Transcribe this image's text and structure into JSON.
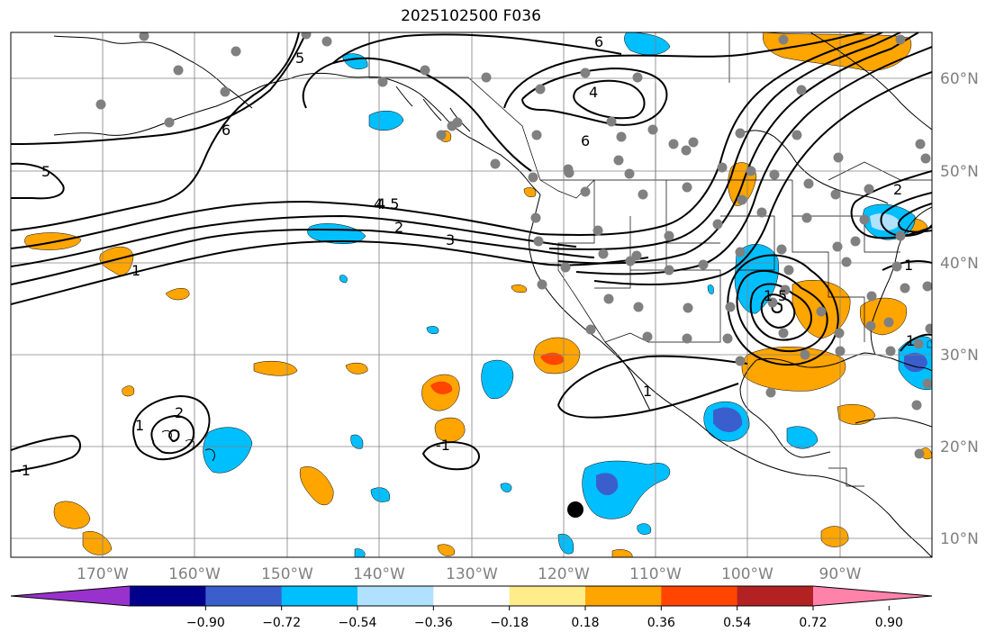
{
  "title": "2025102500 F036",
  "map": {
    "lat_labels": [
      "60°N",
      "50°N",
      "40°N",
      "30°N",
      "20°N",
      "10°N"
    ],
    "lon_labels": [
      "170°W",
      "160°W",
      "150°W",
      "140°W",
      "130°W",
      "120°W",
      "110°W",
      "100°W",
      "90°W"
    ],
    "grid": true,
    "land_color": "#ffffff",
    "coastline_color": "#000000",
    "station_color": "#808080",
    "marker_color": "#000000"
  },
  "contour_labels": [
    "6",
    "4",
    "6",
    "6",
    "5",
    "5",
    "4.5",
    "4",
    "2",
    "3",
    "1",
    "2",
    "1",
    "1",
    "1",
    "5",
    "1",
    "2",
    "1"
  ],
  "colorbar": {
    "ticks": [
      "−0.90",
      "−0.72",
      "−0.54",
      "−0.36",
      "−0.18",
      "0.18",
      "0.36",
      "0.54",
      "0.72",
      "0.90"
    ],
    "colors": [
      "#9932cc",
      "#00008b",
      "#3a5fcd",
      "#00bfff",
      "#b0e2ff",
      "#ffffff",
      "#ffec8b",
      "#ffa500",
      "#ff4500",
      "#b22222",
      "#ff82ab"
    ]
  }
}
